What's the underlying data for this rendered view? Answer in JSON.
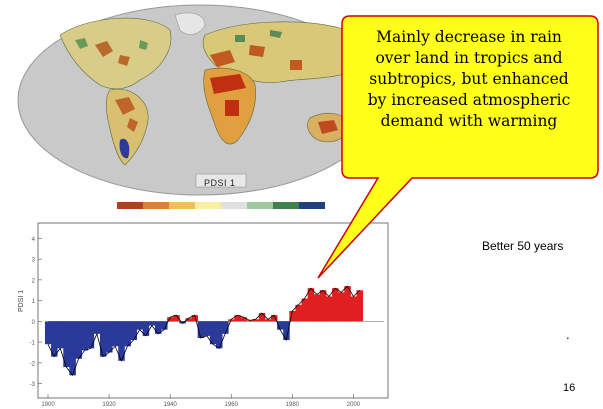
{
  "slide": {
    "callout_lines": [
      "Mainly decrease in rain",
      "over land in tropics and",
      "subtropics, but enhanced",
      "by increased atmospheric",
      "demand with warming"
    ],
    "side_note": "Better 50 years",
    "dot": ".",
    "page_number": "16"
  },
  "map": {
    "label": "PDSI 1",
    "colorbar_colors": [
      "#b04020",
      "#e08030",
      "#f0c050",
      "#f8f0a0",
      "#e0e0e0",
      "#a0c8a0",
      "#408050",
      "#204080"
    ]
  },
  "chart_data": {
    "type": "area",
    "ylabel": "PDSI 1",
    "x_ticks": [
      "1900",
      "1920",
      "1940",
      "1960",
      "1980",
      "2000"
    ],
    "y_ticks": [
      "4",
      "3",
      "2",
      "1",
      "0",
      "-1",
      "-2",
      "-3"
    ],
    "ylim": [
      -3.5,
      4.5
    ],
    "xlim": [
      1900,
      2010
    ],
    "colors": {
      "positive": "#e02020",
      "negative": "#2a3a9a",
      "line": "#000000"
    },
    "x": [
      1900,
      1902,
      1904,
      1906,
      1908,
      1910,
      1912,
      1914,
      1916,
      1918,
      1920,
      1922,
      1924,
      1926,
      1928,
      1930,
      1932,
      1934,
      1936,
      1938,
      1940,
      1942,
      1944,
      1946,
      1948,
      1950,
      1952,
      1954,
      1956,
      1958,
      1960,
      1962,
      1964,
      1966,
      1968,
      1970,
      1972,
      1974,
      1976,
      1978,
      1980,
      1982,
      1984,
      1986,
      1988,
      1990,
      1992,
      1994,
      1996,
      1998,
      2000,
      2002
    ],
    "values": [
      -1.1,
      -1.7,
      -1.3,
      -2.2,
      -2.6,
      -1.8,
      -1.4,
      -1.3,
      -0.6,
      -1.7,
      -1.5,
      -1.2,
      -1.9,
      -1.2,
      -0.9,
      -0.4,
      -0.7,
      -0.2,
      -0.6,
      -0.4,
      0.2,
      0.3,
      -0.1,
      0.15,
      0.3,
      -0.8,
      -0.7,
      -1.1,
      -1.3,
      -0.6,
      0.1,
      0.3,
      0.2,
      0.05,
      0.1,
      0.4,
      0.1,
      0.3,
      -0.4,
      -0.9,
      0.5,
      0.8,
      1.1,
      1.6,
      1.3,
      1.5,
      1.2,
      1.6,
      1.4,
      1.7,
      1.2,
      1.5
    ]
  }
}
